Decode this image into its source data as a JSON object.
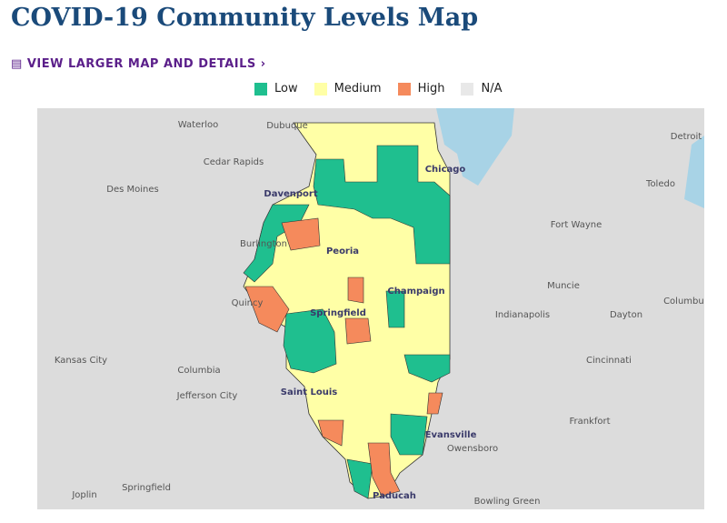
{
  "header": {
    "title": "COVID-19 Community Levels Map",
    "link": "VIEW LARGER MAP AND DETAILS"
  },
  "legend": [
    {
      "label": "Low",
      "color": "#1fbf8f"
    },
    {
      "label": "Medium",
      "color": "#ffffa6"
    },
    {
      "label": "High",
      "color": "#f58a5c"
    },
    {
      "label": "N/A",
      "color": "#e8e8e8"
    }
  ],
  "map": {
    "places": [
      "Waterloo",
      "Dubuque",
      "Cedar Rapids",
      "Des Moines",
      "Davenport",
      "Chicago",
      "Detroit",
      "Toledo",
      "Fort Wayne",
      "Burlington",
      "Peoria",
      "Muncie",
      "Champaign",
      "Quincy",
      "Springfield",
      "Indianapolis",
      "Dayton",
      "Columbus",
      "Kansas City",
      "Columbia",
      "Cincinnati",
      "Jefferson City",
      "Saint Louis",
      "Frankfort",
      "Evansville",
      "Owensboro",
      "Springfield",
      "Joplin",
      "Paducah",
      "Bowling Green"
    ]
  }
}
